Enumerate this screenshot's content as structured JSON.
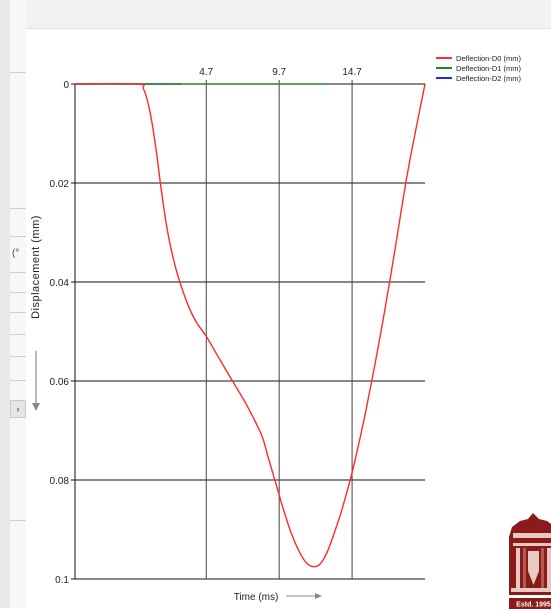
{
  "chart_data": {
    "type": "line",
    "xlabel": "Time (ms)",
    "ylabel": "Displacement (mm)",
    "x_ticks": [
      "4.7",
      "9.7",
      "14.7"
    ],
    "y_ticks": [
      "0",
      "0.02",
      "0.04",
      "0.06",
      "0.08",
      "0.1"
    ],
    "xlim": [
      -4.3,
      19.7
    ],
    "ylim": [
      0,
      0.1
    ],
    "y_inverted": true,
    "grid": true,
    "legend_position": "top-right",
    "series": [
      {
        "name": "Deflection-D0 (mm)",
        "color": "#ff2a2a",
        "x": [
          -4.3,
          0,
          0.4,
          0.8,
          1.2,
          1.6,
          2.0,
          2.5,
          3.0,
          3.5,
          4.0,
          4.7,
          5.5,
          6.5,
          7.5,
          8.5,
          9.0,
          9.5,
          10.0,
          10.5,
          11.0,
          11.5,
          12.0,
          12.5,
          13.0,
          13.5,
          14.0,
          14.7,
          15.5,
          16.5,
          17.5,
          18.5,
          19.7
        ],
        "y": [
          0,
          0,
          0.001,
          0.005,
          0.012,
          0.021,
          0.029,
          0.036,
          0.041,
          0.045,
          0.048,
          0.051,
          0.055,
          0.06,
          0.065,
          0.071,
          0.076,
          0.081,
          0.086,
          0.0905,
          0.094,
          0.0965,
          0.0975,
          0.097,
          0.0945,
          0.0905,
          0.086,
          0.0785,
          0.068,
          0.053,
          0.036,
          0.018,
          0
        ]
      },
      {
        "name": "Deflection-D1 (mm)",
        "color": "#1e8a1e",
        "x": [
          -4.3,
          1.5,
          4.7,
          7.0,
          9.7,
          12.0,
          13.0
        ],
        "y": [
          0,
          0,
          0,
          0,
          0,
          0,
          0
        ]
      },
      {
        "name": "Deflection-D2 (mm)",
        "color": "#1f2fd6",
        "x": [
          -4.3,
          -2.0,
          0.5,
          3.0
        ],
        "y": [
          0,
          0,
          0,
          0
        ]
      }
    ]
  },
  "logo": {
    "caption": "Estd. 1995",
    "colors": {
      "primary": "#8b1a1a",
      "light": "#e9c9c3"
    }
  }
}
